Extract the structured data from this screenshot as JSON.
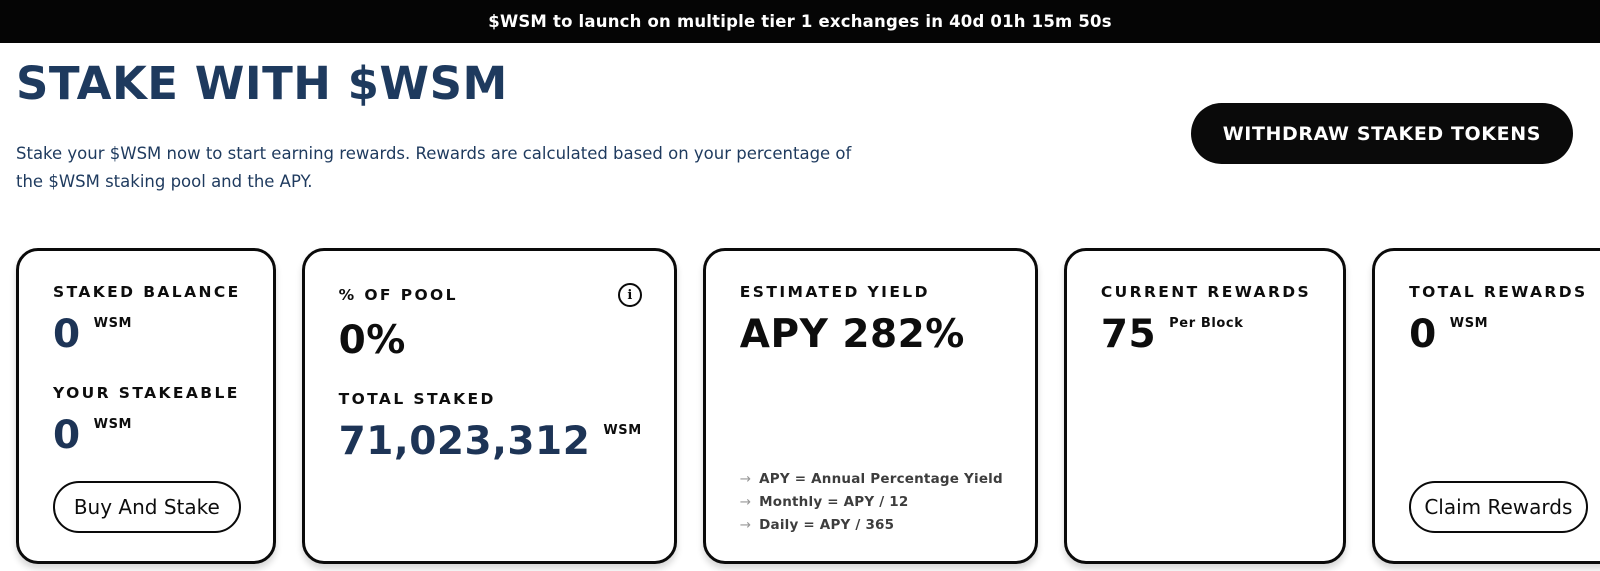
{
  "banner": {
    "text": "$WSM to launch on multiple tier 1 exchanges in 40d 01h 15m 50s"
  },
  "header": {
    "title": "STAKE WITH $WSM",
    "description_line1": "Stake your $WSM now to start earning rewards. Rewards are calculated based on your percentage of",
    "description_line2": "the $WSM staking pool and the APY.",
    "withdraw_button_label": "WITHDRAW STAKED TOKENS"
  },
  "icons": {
    "info_glyph": "i",
    "arrow_glyph": "→"
  },
  "cards": {
    "staked_balance": {
      "label": "STAKED BALANCE",
      "value": "0",
      "unit": "WSM",
      "label2": "YOUR STAKEABLE",
      "value2": "0",
      "unit2": "WSM",
      "button_label": "Buy And Stake"
    },
    "pool": {
      "label": "% OF POOL",
      "value": "0%",
      "label2": "TOTAL STAKED",
      "value2": "71,023,312",
      "unit2": "WSM"
    },
    "yield": {
      "label": "ESTIMATED YIELD",
      "value": "APY 282%",
      "notes": [
        "APY = Annual Percentage Yield",
        "Monthly = APY / 12",
        "Daily = APY / 365"
      ]
    },
    "current_rewards": {
      "label": "CURRENT REWARDS",
      "value": "75",
      "unit": "Per Block"
    },
    "total_rewards": {
      "label": "TOTAL REWARDS",
      "value": "0",
      "unit": "WSM",
      "button_label": "Claim Rewards"
    }
  },
  "colors": {
    "banner_bg": "#050505",
    "navy": "#1e3a5e",
    "number_navy": "#1d3456",
    "text_black": "#0d0d0d",
    "button_black": "#0a0a0a",
    "note_gray": "#3d3d3d",
    "arrow_gray": "#979797",
    "background": "#ffffff"
  }
}
